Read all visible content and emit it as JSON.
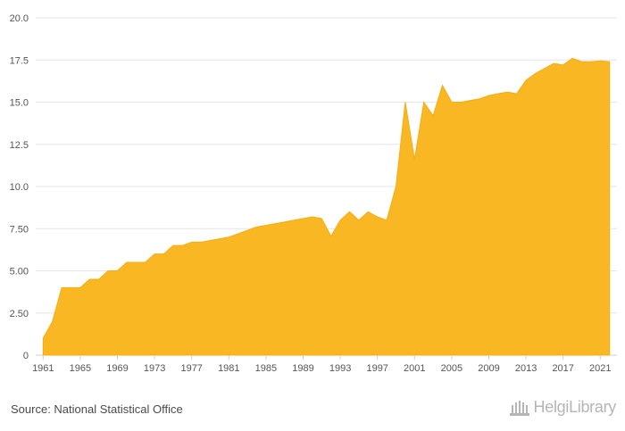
{
  "chart_data": {
    "type": "area",
    "color": "#f9b823",
    "grid": true,
    "legend": "none",
    "xlim": [
      1960.2,
      2022.8
    ],
    "ylim": [
      0,
      20
    ],
    "y_ticks": [
      "0",
      "2.50",
      "5.00",
      "7.50",
      "10.0",
      "12.5",
      "15.0",
      "17.5",
      "20.0"
    ],
    "x_ticks": [
      "1961",
      "1965",
      "1969",
      "1973",
      "1977",
      "1981",
      "1985",
      "1989",
      "1993",
      "1997",
      "2001",
      "2005",
      "2009",
      "2013",
      "2017",
      "2021"
    ],
    "x": [
      1961,
      1962,
      1963,
      1964,
      1965,
      1966,
      1967,
      1968,
      1969,
      1970,
      1971,
      1972,
      1973,
      1974,
      1975,
      1976,
      1977,
      1978,
      1979,
      1980,
      1981,
      1982,
      1983,
      1984,
      1985,
      1986,
      1987,
      1988,
      1989,
      1990,
      1991,
      1992,
      1993,
      1994,
      1995,
      1996,
      1997,
      1998,
      1999,
      2000,
      2001,
      2002,
      2003,
      2004,
      2005,
      2006,
      2007,
      2008,
      2009,
      2010,
      2011,
      2012,
      2013,
      2014,
      2015,
      2016,
      2017,
      2018,
      2019,
      2020,
      2021,
      2022
    ],
    "values": [
      1.0,
      2.0,
      4.0,
      4.0,
      4.0,
      4.5,
      4.5,
      5.0,
      5.0,
      5.5,
      5.5,
      5.5,
      6.0,
      6.0,
      6.5,
      6.5,
      6.7,
      6.7,
      6.8,
      6.9,
      7.0,
      7.2,
      7.4,
      7.6,
      7.7,
      7.8,
      7.9,
      8.0,
      8.1,
      8.2,
      8.1,
      7.05,
      8.0,
      8.5,
      8.0,
      8.5,
      8.2,
      8.0,
      10.0,
      15.0,
      11.6,
      15.0,
      14.2,
      16.0,
      15.0,
      15.0,
      15.1,
      15.2,
      15.4,
      15.5,
      15.6,
      15.5,
      16.3,
      16.7,
      17.0,
      17.3,
      17.2,
      17.6,
      17.4,
      17.4,
      17.45,
      17.4
    ]
  },
  "footer": {
    "source": "Source: National Statistical Office",
    "logo_text": "HelgiLibrary"
  }
}
